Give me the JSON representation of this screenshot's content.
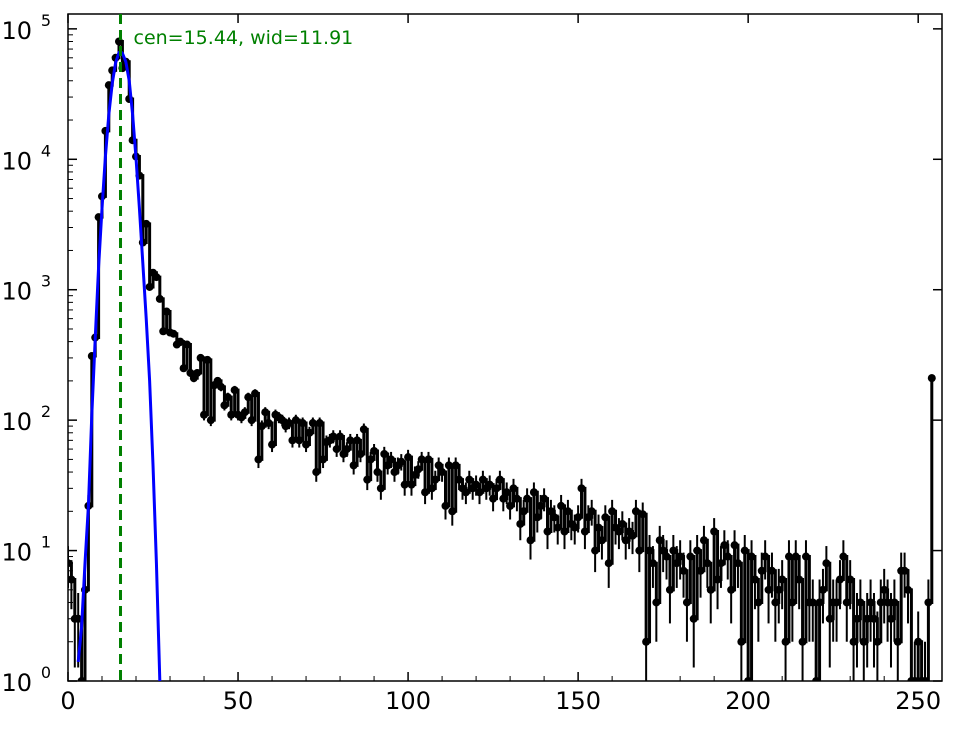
{
  "chart_data": {
    "type": "line",
    "title": "",
    "xlabel": "",
    "ylabel": "",
    "xlim": [
      0,
      257
    ],
    "ylim": [
      1,
      130000
    ],
    "yscale": "log",
    "grid": false,
    "x_ticks": [
      0,
      50,
      100,
      150,
      200,
      250
    ],
    "x_tick_labels": [
      "0",
      "50",
      "100",
      "150",
      "200",
      "250"
    ],
    "y_ticks": [
      1,
      10,
      100,
      1000,
      10000,
      100000
    ],
    "y_tick_labels": [
      {
        "base": "10",
        "exp": "0"
      },
      {
        "base": "10",
        "exp": "1"
      },
      {
        "base": "10",
        "exp": "2"
      },
      {
        "base": "10",
        "exp": "3"
      },
      {
        "base": "10",
        "exp": "4"
      },
      {
        "base": "10",
        "exp": "5"
      }
    ],
    "annotation": {
      "text": "cen=15.44, wid=11.91",
      "color": "#008000"
    },
    "center_line": {
      "x": 15.44,
      "color": "#008000",
      "style": "dashed"
    },
    "series": [
      {
        "style": "steps-with-markers",
        "color": "#000000",
        "points": [
          [
            0,
            8
          ],
          [
            1,
            6
          ],
          [
            2,
            3
          ],
          [
            3,
            3
          ],
          [
            4,
            1
          ],
          [
            5,
            5
          ],
          [
            6,
            22
          ],
          [
            7,
            310
          ],
          [
            8,
            430
          ],
          [
            9,
            3600
          ],
          [
            10,
            5200
          ],
          [
            11,
            16500
          ],
          [
            12,
            37000
          ],
          [
            13,
            48000
          ],
          [
            14,
            60000
          ],
          [
            15,
            80000
          ],
          [
            16,
            50000
          ],
          [
            17,
            56000
          ],
          [
            18,
            29000
          ],
          [
            19,
            14000
          ],
          [
            20,
            10500
          ],
          [
            21,
            7500
          ],
          [
            22,
            2300
          ],
          [
            23,
            3200
          ],
          [
            24,
            1050
          ],
          [
            25,
            1350
          ],
          [
            26,
            1250
          ],
          [
            27,
            850
          ],
          [
            28,
            480
          ],
          [
            29,
            680
          ],
          [
            30,
            470
          ],
          [
            31,
            460
          ],
          [
            32,
            380
          ],
          [
            33,
            400
          ],
          [
            34,
            250
          ],
          [
            35,
            380
          ],
          [
            36,
            230
          ],
          [
            37,
            210
          ],
          [
            38,
            230
          ],
          [
            39,
            300
          ],
          [
            40,
            110
          ],
          [
            41,
            290
          ],
          [
            42,
            100
          ],
          [
            43,
            185
          ],
          [
            44,
            200
          ],
          [
            45,
            180
          ],
          [
            46,
            130
          ],
          [
            47,
            150
          ],
          [
            48,
            110
          ],
          [
            49,
            170
          ],
          [
            50,
            110
          ],
          [
            51,
            105
          ],
          [
            52,
            115
          ],
          [
            53,
            150
          ],
          [
            54,
            100
          ],
          [
            55,
            160
          ],
          [
            56,
            50
          ],
          [
            57,
            90
          ],
          [
            58,
            115
          ],
          [
            59,
            95
          ],
          [
            60,
            65
          ],
          [
            61,
            110
          ],
          [
            62,
            105
          ],
          [
            63,
            100
          ],
          [
            64,
            90
          ],
          [
            65,
            95
          ],
          [
            66,
            70
          ],
          [
            67,
            100
          ],
          [
            68,
            70
          ],
          [
            69,
            95
          ],
          [
            70,
            65
          ],
          [
            71,
            80
          ],
          [
            72,
            95
          ],
          [
            73,
            40
          ],
          [
            74,
            95
          ],
          [
            75,
            50
          ],
          [
            76,
            68
          ],
          [
            77,
            70
          ],
          [
            78,
            75
          ],
          [
            79,
            60
          ],
          [
            80,
            75
          ],
          [
            81,
            55
          ],
          [
            82,
            60
          ],
          [
            83,
            70
          ],
          [
            84,
            45
          ],
          [
            85,
            70
          ],
          [
            86,
            55
          ],
          [
            87,
            85
          ],
          [
            88,
            35
          ],
          [
            89,
            50
          ],
          [
            90,
            58
          ],
          [
            91,
            40
          ],
          [
            92,
            30
          ],
          [
            93,
            55
          ],
          [
            94,
            45
          ],
          [
            95,
            50
          ],
          [
            96,
            40
          ],
          [
            97,
            45
          ],
          [
            98,
            48
          ],
          [
            99,
            32
          ],
          [
            100,
            52
          ],
          [
            101,
            32
          ],
          [
            102,
            38
          ],
          [
            103,
            42
          ],
          [
            104,
            50
          ],
          [
            105,
            28
          ],
          [
            106,
            50
          ],
          [
            107,
            30
          ],
          [
            108,
            35
          ],
          [
            109,
            45
          ],
          [
            110,
            40
          ],
          [
            111,
            22
          ],
          [
            112,
            45
          ],
          [
            113,
            20
          ],
          [
            114,
            45
          ],
          [
            115,
            35
          ],
          [
            116,
            30
          ],
          [
            117,
            28
          ],
          [
            118,
            35
          ],
          [
            119,
            30
          ],
          [
            120,
            32
          ],
          [
            121,
            28
          ],
          [
            122,
            35
          ],
          [
            123,
            30
          ],
          [
            124,
            32
          ],
          [
            125,
            25
          ],
          [
            126,
            30
          ],
          [
            127,
            35
          ],
          [
            128,
            25
          ],
          [
            129,
            28
          ],
          [
            130,
            22
          ],
          [
            131,
            30
          ],
          [
            132,
            25
          ],
          [
            133,
            16
          ],
          [
            134,
            20
          ],
          [
            135,
            25
          ],
          [
            136,
            12
          ],
          [
            137,
            28
          ],
          [
            138,
            18
          ],
          [
            139,
            22
          ],
          [
            140,
            25
          ],
          [
            141,
            14
          ],
          [
            142,
            20
          ],
          [
            143,
            18
          ],
          [
            144,
            15
          ],
          [
            145,
            22
          ],
          [
            146,
            14
          ],
          [
            147,
            20
          ],
          [
            148,
            16
          ],
          [
            149,
            15
          ],
          [
            150,
            18
          ],
          [
            151,
            30
          ],
          [
            152,
            14
          ],
          [
            153,
            18
          ],
          [
            154,
            20
          ],
          [
            155,
            10
          ],
          [
            156,
            15
          ],
          [
            157,
            12
          ],
          [
            158,
            18
          ],
          [
            159,
            8
          ],
          [
            160,
            20
          ],
          [
            161,
            15
          ],
          [
            162,
            14
          ],
          [
            163,
            16
          ],
          [
            164,
            12
          ],
          [
            165,
            14
          ],
          [
            166,
            13
          ],
          [
            167,
            20
          ],
          [
            168,
            10
          ],
          [
            169,
            19
          ],
          [
            170,
            2
          ],
          [
            171,
            10
          ],
          [
            172,
            8
          ],
          [
            173,
            4
          ],
          [
            174,
            12
          ],
          [
            175,
            10
          ],
          [
            176,
            9
          ],
          [
            177,
            5
          ],
          [
            178,
            10
          ],
          [
            179,
            8
          ],
          [
            180,
            9
          ],
          [
            181,
            7
          ],
          [
            182,
            4
          ],
          [
            183,
            9
          ],
          [
            184,
            3
          ],
          [
            185,
            10
          ],
          [
            186,
            7
          ],
          [
            187,
            12
          ],
          [
            188,
            8
          ],
          [
            189,
            5
          ],
          [
            190,
            14
          ],
          [
            191,
            6
          ],
          [
            192,
            8
          ],
          [
            193,
            11
          ],
          [
            194,
            9
          ],
          [
            195,
            5
          ],
          [
            196,
            11
          ],
          [
            197,
            8
          ],
          [
            198,
            2
          ],
          [
            199,
            10
          ],
          [
            200,
            1
          ],
          [
            201,
            9
          ],
          [
            202,
            6
          ],
          [
            203,
            4
          ],
          [
            204,
            7
          ],
          [
            205,
            9
          ],
          [
            206,
            5
          ],
          [
            207,
            7
          ],
          [
            208,
            4
          ],
          [
            209,
            5
          ],
          [
            210,
            6
          ],
          [
            211,
            2
          ],
          [
            212,
            9
          ],
          [
            213,
            4
          ],
          [
            214,
            9
          ],
          [
            215,
            6
          ],
          [
            216,
            2
          ],
          [
            217,
            9
          ],
          [
            218,
            4
          ],
          [
            219,
            4
          ],
          [
            220,
            1
          ],
          [
            221,
            4
          ],
          [
            222,
            5
          ],
          [
            223,
            8
          ],
          [
            224,
            3
          ],
          [
            225,
            4
          ],
          [
            226,
            4
          ],
          [
            227,
            6
          ],
          [
            228,
            9
          ],
          [
            229,
            4
          ],
          [
            230,
            6
          ],
          [
            231,
            2
          ],
          [
            232,
            3
          ],
          [
            233,
            4
          ],
          [
            234,
            2
          ],
          [
            235,
            3
          ],
          [
            236,
            4
          ],
          [
            237,
            3
          ],
          [
            238,
            2
          ],
          [
            239,
            4
          ],
          [
            240,
            5
          ],
          [
            241,
            4
          ],
          [
            242,
            3
          ],
          [
            243,
            4
          ],
          [
            244,
            2
          ],
          [
            245,
            7
          ],
          [
            246,
            7
          ],
          [
            247,
            5
          ],
          [
            248,
            1
          ],
          [
            249,
            1
          ],
          [
            250,
            2
          ],
          [
            251,
            1
          ],
          [
            252,
            1
          ],
          [
            253,
            4
          ],
          [
            254,
            210
          ]
        ]
      },
      {
        "style": "line",
        "color": "#0000ff",
        "points": [
          [
            3,
            1.4
          ],
          [
            4,
            2.6
          ],
          [
            5,
            8
          ],
          [
            6,
            22
          ],
          [
            7,
            110
          ],
          [
            8,
            420
          ],
          [
            9,
            1500
          ],
          [
            10,
            4200
          ],
          [
            11,
            10500
          ],
          [
            12,
            22000
          ],
          [
            13,
            38000
          ],
          [
            14,
            55000
          ],
          [
            15,
            66000
          ],
          [
            15.44,
            67000
          ],
          [
            16,
            65000
          ],
          [
            17,
            56000
          ],
          [
            18,
            40000
          ],
          [
            19,
            22000
          ],
          [
            20,
            10200
          ],
          [
            21,
            4200
          ],
          [
            22,
            1600
          ],
          [
            23,
            600
          ],
          [
            24,
            200
          ],
          [
            25,
            45
          ],
          [
            26,
            8
          ],
          [
            27,
            1
          ]
        ]
      }
    ]
  }
}
